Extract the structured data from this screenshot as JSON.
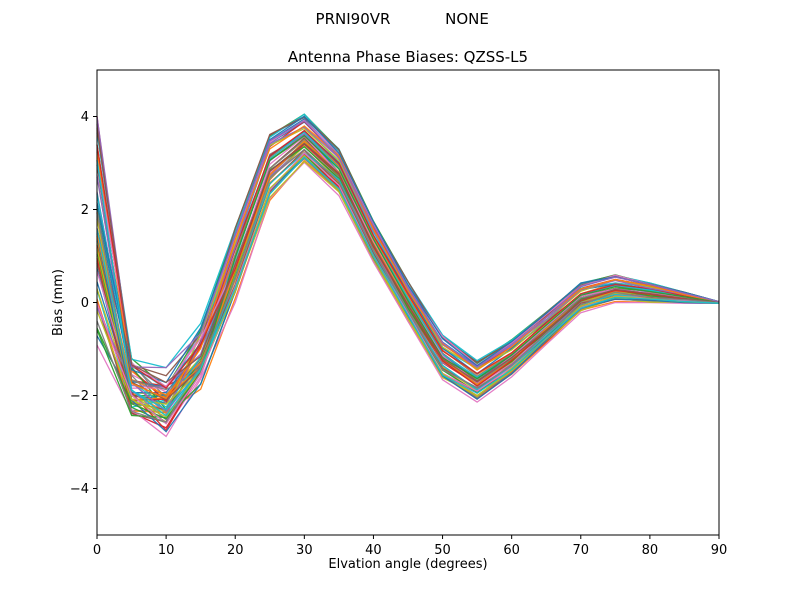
{
  "header": {
    "left": "PRNI90VR",
    "right": "NONE"
  },
  "chart_data": {
    "type": "line",
    "title": "Antenna Phase Biases: QZSS-L5",
    "suptitle": "PRNI90VR        NONE",
    "xlabel": "Elvation angle (degrees)",
    "ylabel": "Bias (mm)",
    "xlim": [
      0,
      90
    ],
    "ylim": [
      -5,
      5
    ],
    "xticks": [
      0,
      10,
      20,
      30,
      40,
      50,
      60,
      70,
      80,
      90
    ],
    "yticks": [
      -4,
      -2,
      0,
      2,
      4
    ],
    "grid": false,
    "legend": "none",
    "ensemble": {
      "description": "Band of ~60 unlabeled antenna phase-bias curves; values given as band mean and half-width (spread) at each elevation angle, lines fan out and cross below ~20 degrees and converge to 0 at 90 degrees",
      "n_lines": 60,
      "x": [
        0,
        5,
        10,
        15,
        20,
        25,
        30,
        35,
        40,
        45,
        50,
        55,
        60,
        65,
        70,
        75,
        80,
        85,
        90
      ],
      "mean": [
        1.5,
        -1.9,
        -2.2,
        -1.2,
        0.8,
        2.9,
        3.5,
        2.8,
        1.3,
        0.0,
        -1.2,
        -1.7,
        -1.2,
        -0.55,
        0.1,
        0.3,
        0.2,
        0.1,
        0.0
      ],
      "spread": [
        2.5,
        0.85,
        0.8,
        0.75,
        0.8,
        0.75,
        0.55,
        0.5,
        0.45,
        0.45,
        0.5,
        0.45,
        0.4,
        0.35,
        0.32,
        0.3,
        0.22,
        0.12,
        0.02
      ],
      "colors": [
        "#1f77b4",
        "#ff7f0e",
        "#2ca02c",
        "#d62728",
        "#9467bd",
        "#8c564b",
        "#e377c2",
        "#7f7f7f",
        "#bcbd22",
        "#17becf"
      ]
    }
  }
}
